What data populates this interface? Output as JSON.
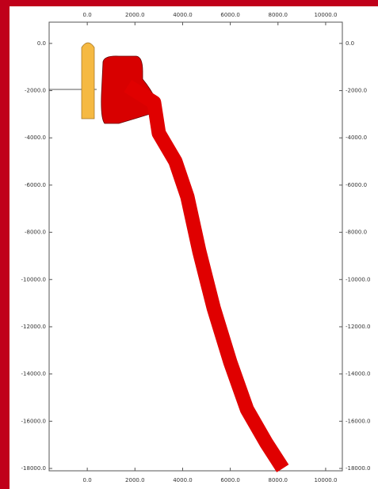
{
  "chart_data": {
    "type": "line",
    "xlim": [
      -1600,
      10700
    ],
    "ylim": [
      900,
      -18100
    ],
    "xticks": [
      {
        "value": 0,
        "label": "0.0"
      },
      {
        "value": 2000,
        "label": "2000.0"
      },
      {
        "value": 4000,
        "label": "4000.0"
      },
      {
        "value": 6000,
        "label": "6000.0"
      },
      {
        "value": 8000,
        "label": "8000.0"
      },
      {
        "value": 10000,
        "label": "10000.0"
      }
    ],
    "yticks": [
      {
        "value": 0,
        "label": "0.0"
      },
      {
        "value": -2000,
        "label": "-2000.0"
      },
      {
        "value": -4000,
        "label": "-4000.0"
      },
      {
        "value": -6000,
        "label": "-6000.0"
      },
      {
        "value": -8000,
        "label": "-8000.0"
      },
      {
        "value": -10000,
        "label": "-10000.0"
      },
      {
        "value": -12000,
        "label": "-12000.0"
      },
      {
        "value": -14000,
        "label": "-14000.0"
      },
      {
        "value": -16000,
        "label": "-16000.0"
      },
      {
        "value": -18000,
        "label": "-18000.0"
      }
    ],
    "series": [
      {
        "color": "#e00000",
        "x": [
          1700,
          2800,
          3000,
          3700,
          4200,
          4700,
          5300,
          6000,
          6700,
          7500,
          8200
        ],
        "values": [
          -1800,
          -2500,
          -3800,
          -5000,
          -6500,
          -8800,
          -11200,
          -13500,
          -15500,
          -16900,
          -18000
        ]
      }
    ]
  }
}
